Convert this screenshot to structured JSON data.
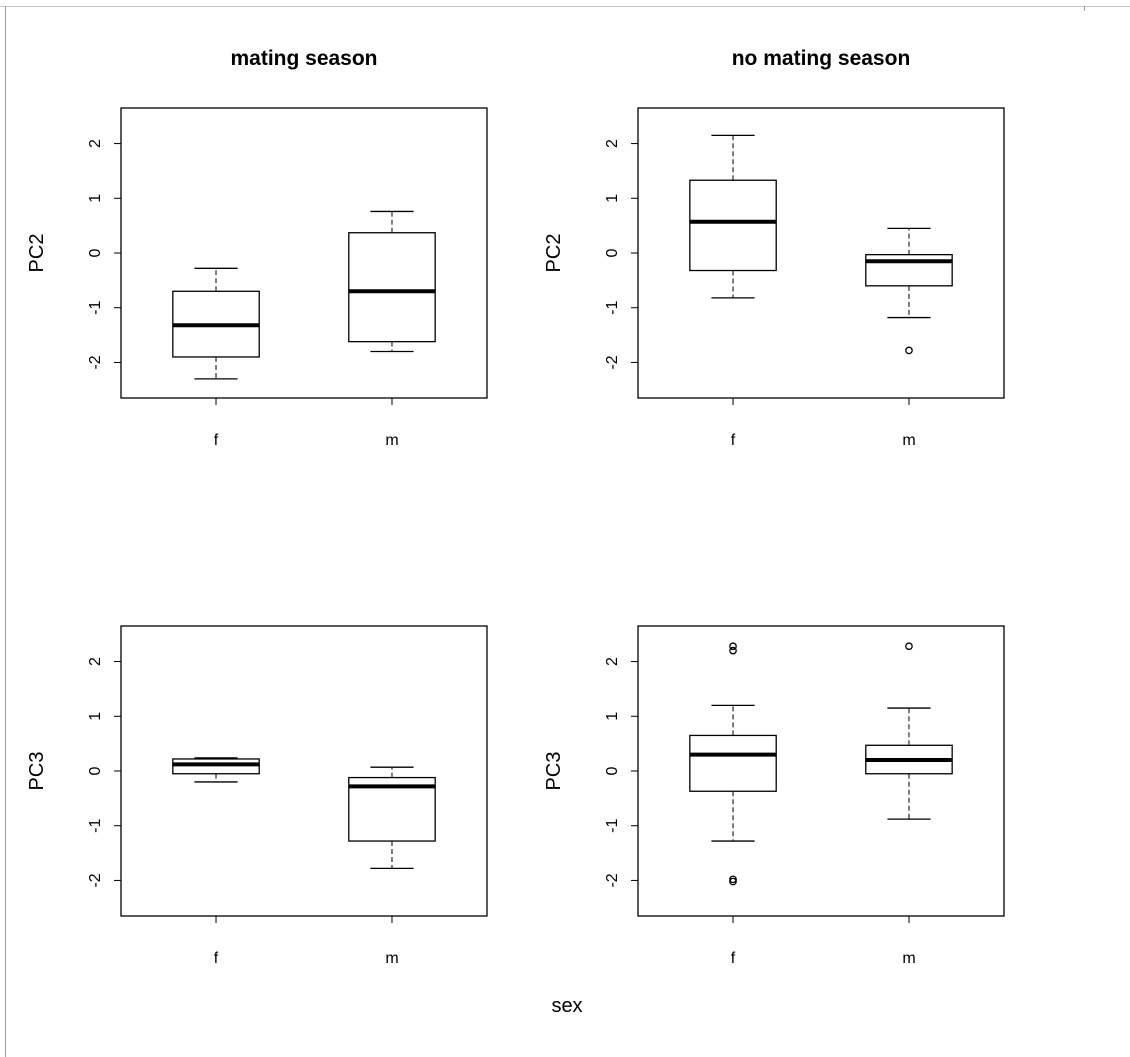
{
  "chart_data": [
    {
      "type": "boxplot",
      "title": "mating season",
      "ylabel": "PC2",
      "ylim": [
        -2.65,
        2.65
      ],
      "yticks": [
        "-2",
        "-1",
        "0",
        "1",
        "2"
      ],
      "categories": [
        "f",
        "m"
      ],
      "boxes": [
        {
          "category": "f",
          "whisker_low": -2.3,
          "q1": -1.9,
          "median": -1.32,
          "q3": -0.7,
          "whisker_high": -0.28,
          "outliers": []
        },
        {
          "category": "m",
          "whisker_low": -1.8,
          "q1": -1.62,
          "median": -0.7,
          "q3": 0.37,
          "whisker_high": 0.76,
          "outliers": []
        }
      ]
    },
    {
      "type": "boxplot",
      "title": "no mating season",
      "ylabel": "PC2",
      "ylim": [
        -2.65,
        2.65
      ],
      "yticks": [
        "-2",
        "-1",
        "0",
        "1",
        "2"
      ],
      "categories": [
        "f",
        "m"
      ],
      "boxes": [
        {
          "category": "f",
          "whisker_low": -0.82,
          "q1": -0.32,
          "median": 0.57,
          "q3": 1.33,
          "whisker_high": 2.15,
          "outliers": []
        },
        {
          "category": "m",
          "whisker_low": -1.18,
          "q1": -0.6,
          "median": -0.15,
          "q3": -0.03,
          "whisker_high": 0.45,
          "outliers": [
            -1.78
          ]
        }
      ]
    },
    {
      "type": "boxplot",
      "title": "",
      "ylabel": "PC3",
      "ylim": [
        -2.65,
        2.65
      ],
      "yticks": [
        "-2",
        "-1",
        "0",
        "1",
        "2"
      ],
      "categories": [
        "f",
        "m"
      ],
      "boxes": [
        {
          "category": "f",
          "whisker_low": -0.2,
          "q1": -0.05,
          "median": 0.12,
          "q3": 0.22,
          "whisker_high": 0.24,
          "outliers": []
        },
        {
          "category": "m",
          "whisker_low": -1.78,
          "q1": -1.28,
          "median": -0.28,
          "q3": -0.12,
          "whisker_high": 0.07,
          "outliers": []
        }
      ]
    },
    {
      "type": "boxplot",
      "title": "",
      "ylabel": "PC3",
      "ylim": [
        -2.65,
        2.65
      ],
      "yticks": [
        "-2",
        "-1",
        "0",
        "1",
        "2"
      ],
      "categories": [
        "f",
        "m"
      ],
      "boxes": [
        {
          "category": "f",
          "whisker_low": -1.28,
          "q1": -0.37,
          "median": 0.3,
          "q3": 0.65,
          "whisker_high": 1.2,
          "outliers": [
            2.2,
            2.28,
            -1.98,
            -2.02
          ]
        },
        {
          "category": "m",
          "whisker_low": -0.88,
          "q1": -0.05,
          "median": 0.2,
          "q3": 0.47,
          "whisker_high": 1.15,
          "outliers": [
            2.28
          ]
        }
      ]
    }
  ],
  "shared_xlabel": "sex"
}
